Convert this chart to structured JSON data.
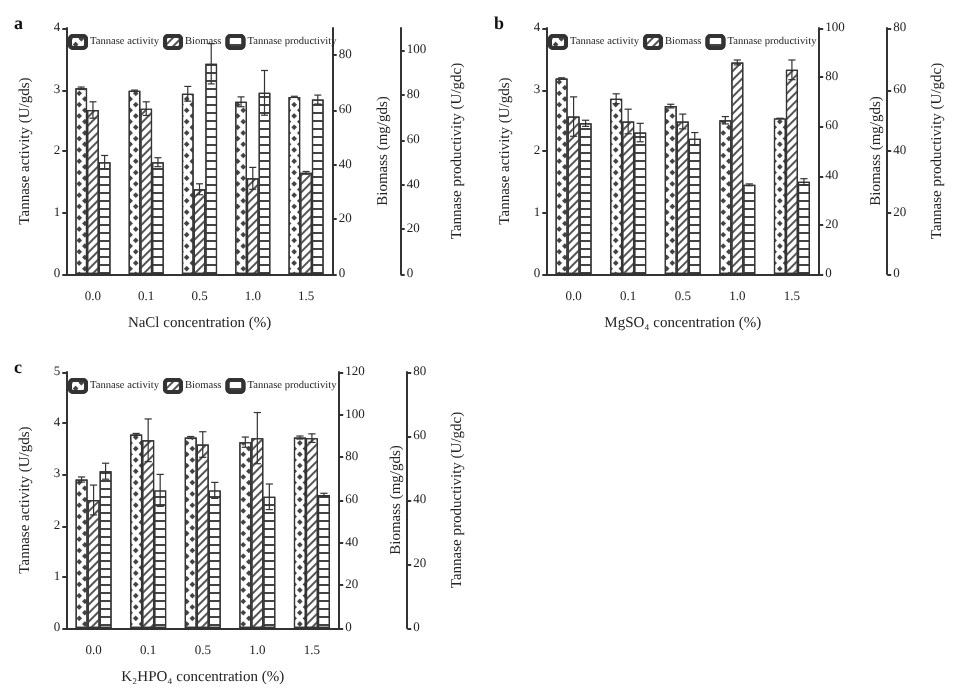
{
  "chart_data": [
    {
      "type": "bar",
      "title": "a",
      "xlabel": "NaCl concentration (%)",
      "ylabel": "Tannase activity (U/gds)",
      "y2label": "Biomass (mg/gds)",
      "y3label": "Tannase productivity (U/gdc)",
      "categories": [
        "0.0",
        "0.1",
        "0.5",
        "1.0",
        "1.5"
      ],
      "legend": "top",
      "ylim": [
        0,
        4
      ],
      "yticks": [
        0,
        1,
        2,
        3,
        4
      ],
      "y2lim": [
        0,
        90
      ],
      "y2ticks": [
        0,
        20,
        40,
        60,
        80
      ],
      "y3lim": [
        0,
        110
      ],
      "y3ticks": [
        0,
        20,
        40,
        60,
        80,
        100
      ],
      "series": [
        {
          "name": "Tannase activity",
          "color": "#ffffff",
          "values": [
            3.02,
            2.98,
            2.93,
            2.8,
            2.88
          ],
          "errors": [
            0.02,
            0.01,
            0.12,
            0.08,
            0.01
          ]
        },
        {
          "name": "Biomass",
          "color": "#ffffff",
          "axis": "y2",
          "values": [
            60,
            60.5,
            31,
            35,
            37
          ],
          "errors": [
            3,
            2.5,
            2,
            4,
            0.5
          ]
        },
        {
          "name": "Tannase productivity",
          "color": "#ffffff",
          "axis": "y3",
          "values": [
            50,
            50,
            94,
            81,
            78
          ],
          "errors": [
            3,
            2,
            9,
            10,
            2
          ]
        }
      ]
    },
    {
      "type": "bar",
      "title": "b",
      "xlabel": "MgSO₄ concentration (%)",
      "ylabel": "Tannase activity (U/gds)",
      "y2label": "Biomass (mg/gds)",
      "y3label": "Tannase productivity (U/gdc)",
      "categories": [
        "0.0",
        "0.1",
        "0.5",
        "1.0",
        "1.5"
      ],
      "legend": "top",
      "ylim": [
        0,
        4
      ],
      "yticks": [
        0,
        1,
        2,
        3,
        4
      ],
      "y2lim": [
        0,
        100
      ],
      "y2ticks": [
        0,
        20,
        40,
        60,
        80,
        100
      ],
      "y3lim": [
        0,
        80
      ],
      "y3ticks": [
        0,
        20,
        40,
        60,
        80
      ],
      "series": [
        {
          "name": "Tannase activity",
          "color": "#ffffff",
          "values": [
            3.18,
            2.85,
            2.73,
            2.5,
            2.53
          ],
          "errors": [
            0.01,
            0.08,
            0.03,
            0.06,
            0
          ]
        },
        {
          "name": "Biomass",
          "color": "#ffffff",
          "axis": "y2",
          "values": [
            64,
            62,
            62,
            86,
            83
          ],
          "errors": [
            8,
            5,
            3,
            1,
            4
          ]
        },
        {
          "name": "Tannase productivity",
          "color": "#ffffff",
          "axis": "y3",
          "values": [
            49,
            46,
            44,
            29,
            30
          ],
          "errors": [
            1,
            3,
            2,
            0.3,
            1
          ]
        }
      ]
    },
    {
      "type": "bar",
      "title": "c",
      "xlabel": "K₂HPO₄ concentration (%)",
      "ylabel": "Tannase activity (U/gds)",
      "y2label": "Biomass (mg/gds)",
      "y3label": "Tannase productivity (U/gdc)",
      "categories": [
        "0.0",
        "0.1",
        "0.5",
        "1.0",
        "1.5"
      ],
      "legend": "top",
      "ylim": [
        0,
        5
      ],
      "yticks": [
        0,
        1,
        2,
        3,
        4,
        5
      ],
      "y2lim": [
        0,
        120
      ],
      "y2ticks": [
        0,
        20,
        40,
        60,
        80,
        100,
        120
      ],
      "y3lim": [
        0,
        80
      ],
      "y3ticks": [
        0,
        20,
        40,
        60,
        80
      ],
      "series": [
        {
          "name": "Tannase activity",
          "color": "#ffffff",
          "values": [
            2.9,
            3.78,
            3.72,
            3.63,
            3.72
          ],
          "errors": [
            0.05,
            0.02,
            0.02,
            0.1,
            0.03
          ]
        },
        {
          "name": "Biomass",
          "color": "#ffffff",
          "axis": "y2",
          "values": [
            60,
            88,
            86,
            89,
            89
          ],
          "errors": [
            7,
            10,
            6,
            12,
            2
          ]
        },
        {
          "name": "Tannase productivity",
          "color": "#ffffff",
          "axis": "y3",
          "values": [
            49,
            43,
            43,
            41,
            41.6
          ],
          "errors": [
            2.5,
            5,
            2.5,
            4,
            0.5
          ]
        }
      ]
    }
  ]
}
